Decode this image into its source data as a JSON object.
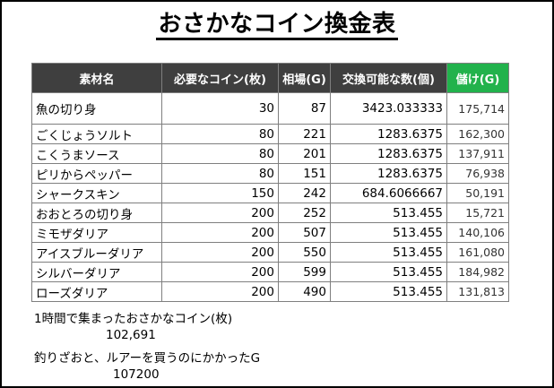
{
  "title": "おさかなコイン換金表",
  "headers": [
    "素材名",
    "必要なコイン(枚)",
    "相場(G)",
    "交換可能な数(個)",
    "儲け(G)"
  ],
  "rows": [
    [
      "魚の切り身",
      "30",
      "87",
      "3423.033333",
      "175,714"
    ],
    [
      "ごくじょうソルト",
      "80",
      "221",
      "1283.6375",
      "162,300"
    ],
    [
      "こくうまソース",
      "80",
      "201",
      "1283.6375",
      "137,911"
    ],
    [
      "ピリからペッパー",
      "80",
      "151",
      "1283.6375",
      "76,938"
    ],
    [
      "シャークスキン",
      "150",
      "242",
      "684.6066667",
      "50,191"
    ],
    [
      "おおとろの切り身",
      "200",
      "252",
      "513.455",
      "15,721"
    ],
    [
      "ミモザダリア",
      "200",
      "507",
      "513.455",
      "140,106"
    ],
    [
      "アイスブルーダリア",
      "200",
      "550",
      "513.455",
      "161,080"
    ],
    [
      "シルバーダリア",
      "200",
      "599",
      "513.455",
      "184,982"
    ],
    [
      "ローズダリア",
      "200",
      "490",
      "513.455",
      "131,813"
    ]
  ],
  "notes": {
    "coins_label": "1時間で集まったおさかなコイン(枚)",
    "coins_value": "102,691",
    "cost_label": "釣りざおと、ルアーを買うのにかかったG",
    "cost_value": "107200"
  },
  "colors": {
    "header_bg": "#3f3f3f",
    "profit_header_bg": "#22b24c"
  }
}
